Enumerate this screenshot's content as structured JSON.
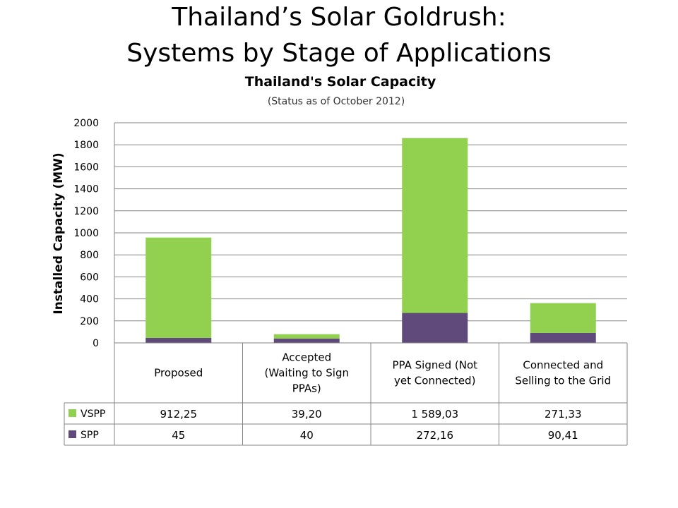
{
  "slide": {
    "title_line1": "Thailand’s Solar Goldrush:",
    "title_line2": "Systems by Stage of Applications"
  },
  "chart_data": {
    "type": "bar",
    "stacked": true,
    "title": "Thailand's Solar Capacity",
    "subtitle": "(Status as of October 2012)",
    "xlabel": "",
    "ylabel": "Installed Capacity (MW)",
    "ylim": [
      0,
      2000
    ],
    "yticks": [
      0,
      200,
      400,
      600,
      800,
      1000,
      1200,
      1400,
      1600,
      1800,
      2000
    ],
    "grid": true,
    "legend": "data-table",
    "categories": [
      [
        "Proposed"
      ],
      [
        "Accepted",
        "(Waiting to Sign",
        "PPAs)"
      ],
      [
        "PPA Signed (Not",
        "yet Connected)"
      ],
      [
        "Connected and",
        "Selling to the Grid"
      ]
    ],
    "series": [
      {
        "name": "SPP",
        "color": "#604a7b",
        "values": [
          45,
          40,
          272.16,
          90.41
        ],
        "labels": [
          "45",
          "40",
          "272,16",
          "90,41"
        ]
      },
      {
        "name": "VSPP",
        "color": "#92d050",
        "values": [
          912.25,
          39.2,
          1589.03,
          271.33
        ],
        "labels": [
          "912,25",
          "39,20",
          "1 589,03",
          "271,33"
        ]
      }
    ],
    "table_order": [
      "VSPP",
      "SPP"
    ]
  }
}
